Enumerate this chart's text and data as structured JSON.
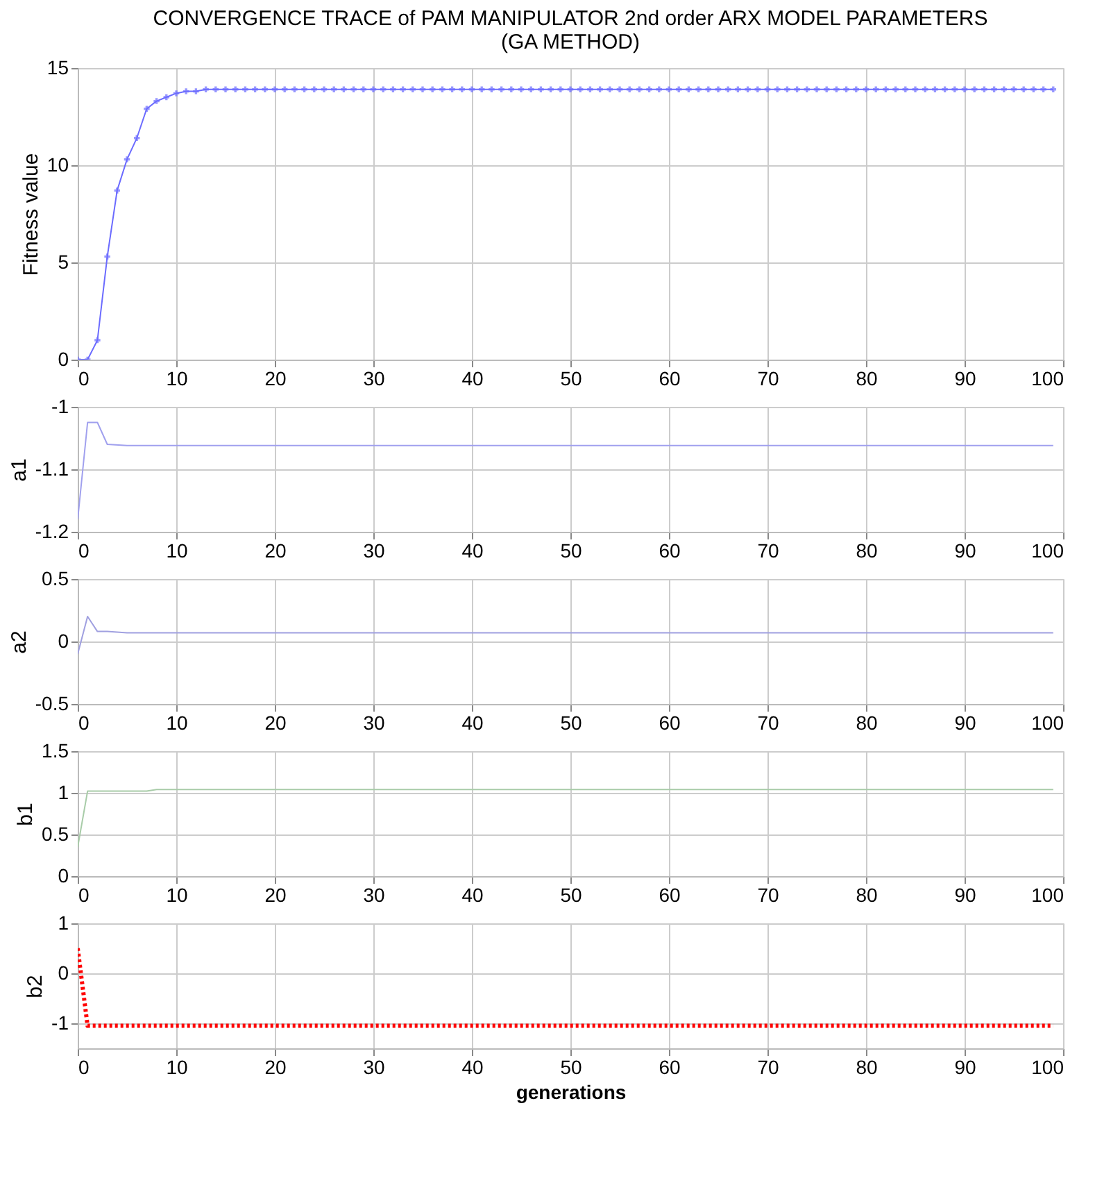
{
  "chart_data": [
    {
      "type": "line",
      "title": "CONVERGENCE TRACE of PAM MANIPULATOR 2nd order ARX MODEL PARAMETERS\n(GA METHOD)",
      "ylabel": "Fitness value",
      "marker": "cross",
      "line_style": "solid",
      "grid": true,
      "xlim": [
        0,
        100
      ],
      "xticks": [
        0,
        10,
        20,
        30,
        40,
        50,
        60,
        70,
        80,
        90,
        100
      ],
      "ylim": [
        0,
        15
      ],
      "yticks": [
        0,
        5,
        10,
        15
      ],
      "x": [
        0,
        1,
        2,
        3,
        4,
        5,
        6,
        7,
        8,
        9,
        10,
        11,
        12,
        13,
        14,
        15,
        16,
        17,
        18,
        19,
        20,
        21,
        22,
        23,
        24,
        25,
        26,
        27,
        28,
        29,
        30,
        31,
        32,
        33,
        34,
        35,
        36,
        37,
        38,
        39,
        40,
        41,
        42,
        43,
        44,
        45,
        46,
        47,
        48,
        49,
        50,
        51,
        52,
        53,
        54,
        55,
        56,
        57,
        58,
        59,
        60,
        61,
        62,
        63,
        64,
        65,
        66,
        67,
        68,
        69,
        70,
        71,
        72,
        73,
        74,
        75,
        76,
        77,
        78,
        79,
        80,
        81,
        82,
        83,
        84,
        85,
        86,
        87,
        88,
        89,
        90,
        91,
        92,
        93,
        94,
        95,
        96,
        97,
        98,
        99
      ],
      "series": [
        {
          "color": "#6b6bff",
          "values": [
            0,
            0,
            1.0,
            5.3,
            8.7,
            10.3,
            11.4,
            12.9,
            13.3,
            13.5,
            13.7,
            13.8,
            13.8,
            13.9,
            13.9,
            13.9,
            13.9,
            13.9,
            13.9,
            13.9,
            13.9,
            13.9,
            13.9,
            13.9,
            13.9,
            13.9,
            13.9,
            13.9,
            13.9,
            13.9,
            13.9,
            13.9,
            13.9,
            13.9,
            13.9,
            13.9,
            13.9,
            13.9,
            13.9,
            13.9,
            13.9,
            13.9,
            13.9,
            13.9,
            13.9,
            13.9,
            13.9,
            13.9,
            13.9,
            13.9,
            13.9,
            13.9,
            13.9,
            13.9,
            13.9,
            13.9,
            13.9,
            13.9,
            13.9,
            13.9,
            13.9,
            13.9,
            13.9,
            13.9,
            13.9,
            13.9,
            13.9,
            13.9,
            13.9,
            13.9,
            13.9,
            13.9,
            13.9,
            13.9,
            13.9,
            13.9,
            13.9,
            13.9,
            13.9,
            13.9,
            13.9,
            13.9,
            13.9,
            13.9,
            13.9,
            13.9,
            13.9,
            13.9,
            13.9,
            13.9,
            13.9,
            13.9,
            13.9,
            13.9,
            13.9,
            13.9,
            13.9,
            13.9,
            13.9,
            13.9
          ]
        }
      ]
    },
    {
      "type": "line",
      "ylabel": "a1",
      "line_style": "solid",
      "grid": true,
      "xlim": [
        0,
        100
      ],
      "xticks": [
        0,
        10,
        20,
        30,
        40,
        50,
        60,
        70,
        80,
        90,
        100
      ],
      "ylim": [
        -1.2,
        -1
      ],
      "yticks": [
        -1.2,
        -1.1,
        -1
      ],
      "x": [
        0,
        1,
        2,
        3,
        5,
        99
      ],
      "series": [
        {
          "color": "#a0a0ee",
          "values": [
            -1.18,
            -1.025,
            -1.025,
            -1.06,
            -1.062,
            -1.062
          ]
        }
      ]
    },
    {
      "type": "line",
      "ylabel": "a2",
      "line_style": "solid",
      "grid": true,
      "xlim": [
        0,
        100
      ],
      "xticks": [
        0,
        10,
        20,
        30,
        40,
        50,
        60,
        70,
        80,
        90,
        100
      ],
      "ylim": [
        -0.5,
        0.5
      ],
      "yticks": [
        -0.5,
        0,
        0.5
      ],
      "x": [
        0,
        1,
        2,
        3,
        5,
        99
      ],
      "series": [
        {
          "color": "#a0a0e0",
          "values": [
            -0.1,
            0.2,
            0.08,
            0.08,
            0.07,
            0.07
          ]
        }
      ]
    },
    {
      "type": "line",
      "ylabel": "b1",
      "line_style": "solid",
      "grid": true,
      "xlim": [
        0,
        100
      ],
      "xticks": [
        0,
        10,
        20,
        30,
        40,
        50,
        60,
        70,
        80,
        90,
        100
      ],
      "ylim": [
        0,
        1.5
      ],
      "yticks": [
        0,
        0.5,
        1,
        1.5
      ],
      "x": [
        0,
        1,
        7,
        8,
        99
      ],
      "series": [
        {
          "color": "#a8cca8",
          "values": [
            0.35,
            1.02,
            1.02,
            1.04,
            1.04
          ]
        }
      ]
    },
    {
      "type": "line",
      "ylabel": "b2",
      "xlabel": "generations",
      "line_style": "dotted",
      "grid": true,
      "xlim": [
        0,
        100
      ],
      "xticks": [
        0,
        10,
        20,
        30,
        40,
        50,
        60,
        70,
        80,
        90,
        100
      ],
      "ylim": [
        -1.5,
        1
      ],
      "yticks": [
        -1,
        0,
        1
      ],
      "x": [
        0,
        1,
        99
      ],
      "series": [
        {
          "color": "#ff0000",
          "values": [
            0.5,
            -1.05,
            -1.05
          ]
        }
      ]
    }
  ]
}
